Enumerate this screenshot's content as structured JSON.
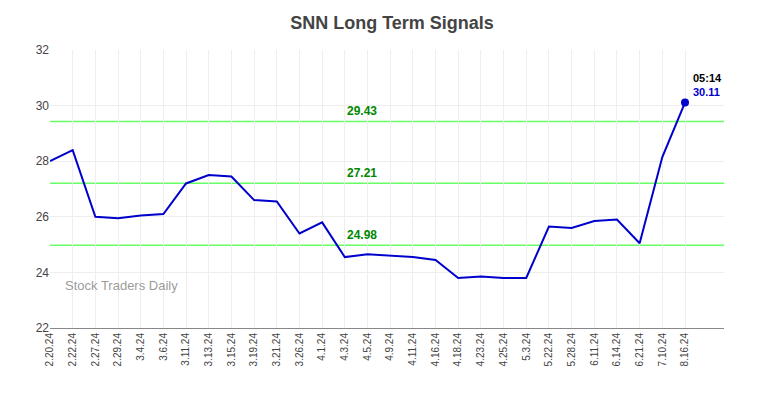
{
  "chart_data": {
    "type": "line",
    "title": "SNN Long Term Signals",
    "categories": [
      "2.20.24",
      "2.22.24",
      "2.27.24",
      "2.29.24",
      "3.4.24",
      "3.6.24",
      "3.11.24",
      "3.13.24",
      "3.15.24",
      "3.19.24",
      "3.21.24",
      "3.26.24",
      "4.1.24",
      "4.3.24",
      "4.5.24",
      "4.9.24",
      "4.11.24",
      "4.16.24",
      "4.18.24",
      "4.23.24",
      "4.25.24",
      "5.3.24",
      "5.22.24",
      "5.28.24",
      "6.11.24",
      "6.14.24",
      "6.21.24",
      "7.10.24",
      "8.16.24"
    ],
    "values": [
      28.0,
      28.4,
      26.0,
      25.95,
      26.05,
      26.1,
      27.2,
      27.5,
      27.45,
      26.6,
      26.55,
      25.4,
      25.8,
      24.55,
      24.65,
      24.6,
      24.55,
      24.45,
      23.8,
      23.85,
      23.8,
      23.8,
      25.65,
      25.6,
      25.85,
      25.9,
      25.05,
      28.15,
      30.11
    ],
    "color": "#0000cc",
    "hlines": [
      {
        "value": 29.43,
        "color": "#66ff66",
        "label_color": "#008800"
      },
      {
        "value": 27.21,
        "color": "#66ff66",
        "label_color": "#008800"
      },
      {
        "value": 24.98,
        "color": "#66ff66",
        "label_color": "#008800"
      }
    ],
    "annotations": [
      {
        "text": "05:14",
        "color": "#000000"
      },
      {
        "text": "30.11",
        "color": "#0000cc"
      }
    ],
    "watermark": "Stock Traders Daily",
    "ylim": [
      22,
      32
    ],
    "yticks": [
      22,
      24,
      26,
      28,
      30,
      32
    ],
    "grid": true
  }
}
